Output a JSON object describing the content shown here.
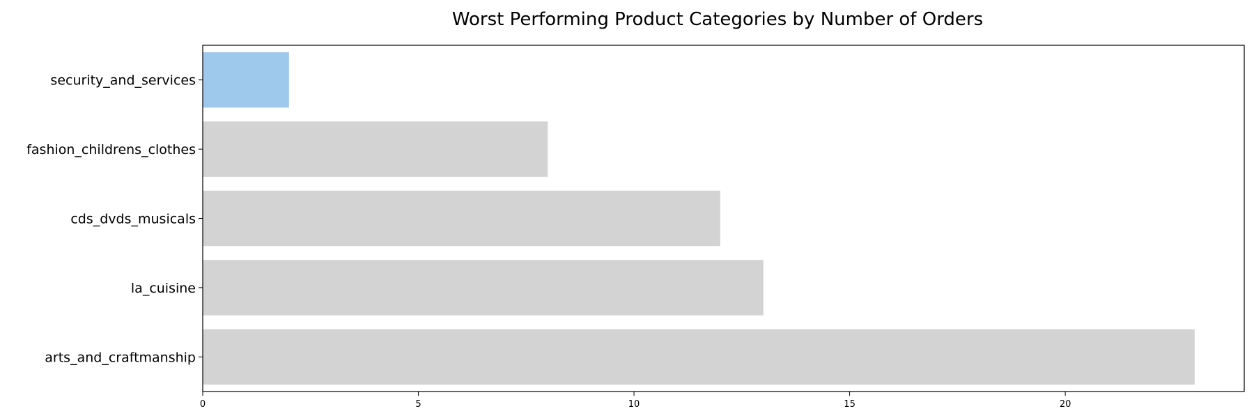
{
  "chart_data": {
    "type": "bar",
    "orientation": "horizontal",
    "title": "Worst Performing Product Categories by Number of Orders",
    "xlabel": "",
    "ylabel": "",
    "categories": [
      "security_and_services",
      "fashion_childrens_clothes",
      "cds_dvds_musicals",
      "la_cuisine",
      "arts_and_craftmanship"
    ],
    "values": [
      2,
      8,
      12,
      13,
      23
    ],
    "xlim": [
      0,
      24.15
    ],
    "xticks": [
      0,
      5,
      10,
      15,
      20
    ],
    "grid": false,
    "colors": {
      "highlight": "#9fc9ec",
      "default": "#d3d3d3",
      "axis": "#000000",
      "background": "#ffffff"
    },
    "highlight_index": 0
  }
}
